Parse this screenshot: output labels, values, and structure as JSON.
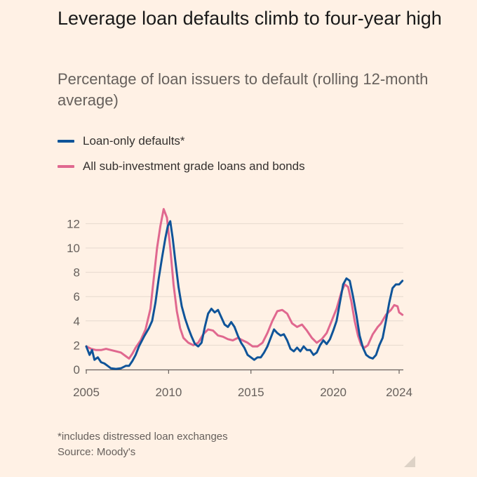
{
  "header": {
    "title": "Leverage loan defaults climb to four-year high",
    "subtitle": "Percentage of loan issuers to default (rolling 12-month average)"
  },
  "footer": {
    "note": "*includes distressed loan exchanges",
    "source": "Source: Moody's"
  },
  "colors": {
    "background": "#fff1e5",
    "series_loan_only": "#0f5499",
    "series_all_subinvestment": "#e0688f",
    "grid": "#e6d9ce",
    "axis": "#66605c"
  },
  "chart_data": {
    "type": "line",
    "title": "Leverage loan defaults climb to four-year high",
    "subtitle": "Percentage of loan issuers to default (rolling 12-month average)",
    "xlabel": "",
    "ylabel": "",
    "xlim": [
      2005,
      2024.2
    ],
    "ylim": [
      0,
      13
    ],
    "x_ticks": [
      2005,
      2010,
      2015,
      2020,
      2024
    ],
    "y_ticks": [
      0,
      2,
      4,
      6,
      8,
      10,
      12
    ],
    "grid": true,
    "legend_position": "top-left",
    "series": [
      {
        "name": "Loan-only defaults*",
        "color": "#0f5499",
        "points": [
          [
            2005.0,
            1.9
          ],
          [
            2005.2,
            1.2
          ],
          [
            2005.35,
            1.6
          ],
          [
            2005.5,
            0.8
          ],
          [
            2005.7,
            1.0
          ],
          [
            2005.9,
            0.6
          ],
          [
            2006.1,
            0.5
          ],
          [
            2006.3,
            0.3
          ],
          [
            2006.5,
            0.1
          ],
          [
            2006.8,
            0.05
          ],
          [
            2007.1,
            0.1
          ],
          [
            2007.4,
            0.3
          ],
          [
            2007.6,
            0.3
          ],
          [
            2007.8,
            0.7
          ],
          [
            2008.0,
            1.2
          ],
          [
            2008.2,
            1.9
          ],
          [
            2008.5,
            2.7
          ],
          [
            2008.8,
            3.4
          ],
          [
            2009.0,
            4.0
          ],
          [
            2009.2,
            5.5
          ],
          [
            2009.4,
            7.5
          ],
          [
            2009.6,
            9.2
          ],
          [
            2009.8,
            10.8
          ],
          [
            2009.95,
            11.8
          ],
          [
            2010.1,
            12.2
          ],
          [
            2010.25,
            10.8
          ],
          [
            2010.4,
            9.0
          ],
          [
            2010.6,
            6.8
          ],
          [
            2010.8,
            5.2
          ],
          [
            2011.0,
            4.2
          ],
          [
            2011.2,
            3.4
          ],
          [
            2011.4,
            2.7
          ],
          [
            2011.6,
            2.1
          ],
          [
            2011.8,
            1.9
          ],
          [
            2012.0,
            2.2
          ],
          [
            2012.2,
            3.5
          ],
          [
            2012.4,
            4.6
          ],
          [
            2012.6,
            5.0
          ],
          [
            2012.8,
            4.7
          ],
          [
            2013.0,
            4.9
          ],
          [
            2013.2,
            4.3
          ],
          [
            2013.4,
            3.7
          ],
          [
            2013.6,
            3.5
          ],
          [
            2013.8,
            3.9
          ],
          [
            2014.0,
            3.5
          ],
          [
            2014.2,
            2.8
          ],
          [
            2014.4,
            2.2
          ],
          [
            2014.6,
            1.8
          ],
          [
            2014.8,
            1.2
          ],
          [
            2015.0,
            1.0
          ],
          [
            2015.2,
            0.8
          ],
          [
            2015.4,
            1.0
          ],
          [
            2015.6,
            1.0
          ],
          [
            2015.8,
            1.4
          ],
          [
            2016.0,
            1.9
          ],
          [
            2016.2,
            2.6
          ],
          [
            2016.4,
            3.3
          ],
          [
            2016.6,
            3.0
          ],
          [
            2016.8,
            2.8
          ],
          [
            2017.0,
            2.9
          ],
          [
            2017.2,
            2.4
          ],
          [
            2017.4,
            1.7
          ],
          [
            2017.6,
            1.5
          ],
          [
            2017.8,
            1.8
          ],
          [
            2018.0,
            1.5
          ],
          [
            2018.2,
            1.9
          ],
          [
            2018.4,
            1.6
          ],
          [
            2018.6,
            1.6
          ],
          [
            2018.8,
            1.2
          ],
          [
            2019.0,
            1.4
          ],
          [
            2019.2,
            2.0
          ],
          [
            2019.4,
            2.4
          ],
          [
            2019.6,
            2.1
          ],
          [
            2019.8,
            2.5
          ],
          [
            2020.0,
            3.2
          ],
          [
            2020.2,
            4.0
          ],
          [
            2020.4,
            5.5
          ],
          [
            2020.6,
            7.0
          ],
          [
            2020.8,
            7.5
          ],
          [
            2021.0,
            7.3
          ],
          [
            2021.2,
            6.0
          ],
          [
            2021.4,
            4.5
          ],
          [
            2021.6,
            2.8
          ],
          [
            2021.8,
            1.8
          ],
          [
            2022.0,
            1.2
          ],
          [
            2022.2,
            1.0
          ],
          [
            2022.4,
            0.9
          ],
          [
            2022.6,
            1.2
          ],
          [
            2022.8,
            2.0
          ],
          [
            2023.0,
            2.6
          ],
          [
            2023.2,
            4.0
          ],
          [
            2023.4,
            5.5
          ],
          [
            2023.6,
            6.7
          ],
          [
            2023.8,
            7.0
          ],
          [
            2024.0,
            7.0
          ],
          [
            2024.2,
            7.3
          ]
        ]
      },
      {
        "name": "All sub-investment grade loans and bonds",
        "color": "#e0688f",
        "points": [
          [
            2005.0,
            1.9
          ],
          [
            2005.3,
            1.7
          ],
          [
            2005.6,
            1.6
          ],
          [
            2005.9,
            1.6
          ],
          [
            2006.2,
            1.7
          ],
          [
            2006.5,
            1.6
          ],
          [
            2006.8,
            1.5
          ],
          [
            2007.1,
            1.4
          ],
          [
            2007.4,
            1.1
          ],
          [
            2007.6,
            0.9
          ],
          [
            2007.8,
            1.3
          ],
          [
            2008.0,
            1.8
          ],
          [
            2008.3,
            2.4
          ],
          [
            2008.6,
            3.3
          ],
          [
            2008.9,
            5.0
          ],
          [
            2009.1,
            7.5
          ],
          [
            2009.3,
            10.0
          ],
          [
            2009.5,
            11.8
          ],
          [
            2009.7,
            13.2
          ],
          [
            2009.9,
            12.5
          ],
          [
            2010.1,
            10.0
          ],
          [
            2010.3,
            7.0
          ],
          [
            2010.5,
            4.8
          ],
          [
            2010.7,
            3.4
          ],
          [
            2010.9,
            2.6
          ],
          [
            2011.2,
            2.2
          ],
          [
            2011.5,
            2.0
          ],
          [
            2011.8,
            2.2
          ],
          [
            2012.1,
            2.9
          ],
          [
            2012.4,
            3.3
          ],
          [
            2012.7,
            3.2
          ],
          [
            2013.0,
            2.8
          ],
          [
            2013.3,
            2.7
          ],
          [
            2013.6,
            2.5
          ],
          [
            2013.9,
            2.4
          ],
          [
            2014.2,
            2.6
          ],
          [
            2014.5,
            2.4
          ],
          [
            2014.8,
            2.2
          ],
          [
            2015.1,
            1.9
          ],
          [
            2015.4,
            1.9
          ],
          [
            2015.7,
            2.2
          ],
          [
            2016.0,
            3.0
          ],
          [
            2016.3,
            4.0
          ],
          [
            2016.6,
            4.8
          ],
          [
            2016.9,
            4.9
          ],
          [
            2017.2,
            4.6
          ],
          [
            2017.5,
            3.8
          ],
          [
            2017.8,
            3.5
          ],
          [
            2018.1,
            3.7
          ],
          [
            2018.4,
            3.2
          ],
          [
            2018.7,
            2.6
          ],
          [
            2019.0,
            2.2
          ],
          [
            2019.3,
            2.5
          ],
          [
            2019.6,
            3.0
          ],
          [
            2019.9,
            4.0
          ],
          [
            2020.2,
            5.0
          ],
          [
            2020.5,
            6.4
          ],
          [
            2020.7,
            7.0
          ],
          [
            2020.9,
            6.8
          ],
          [
            2021.1,
            5.6
          ],
          [
            2021.3,
            4.0
          ],
          [
            2021.5,
            2.8
          ],
          [
            2021.7,
            2.0
          ],
          [
            2021.9,
            1.8
          ],
          [
            2022.1,
            2.0
          ],
          [
            2022.4,
            2.9
          ],
          [
            2022.7,
            3.5
          ],
          [
            2022.9,
            3.8
          ],
          [
            2023.2,
            4.5
          ],
          [
            2023.5,
            4.9
          ],
          [
            2023.7,
            5.3
          ],
          [
            2023.9,
            5.2
          ],
          [
            2024.0,
            4.7
          ],
          [
            2024.2,
            4.5
          ]
        ]
      }
    ]
  }
}
